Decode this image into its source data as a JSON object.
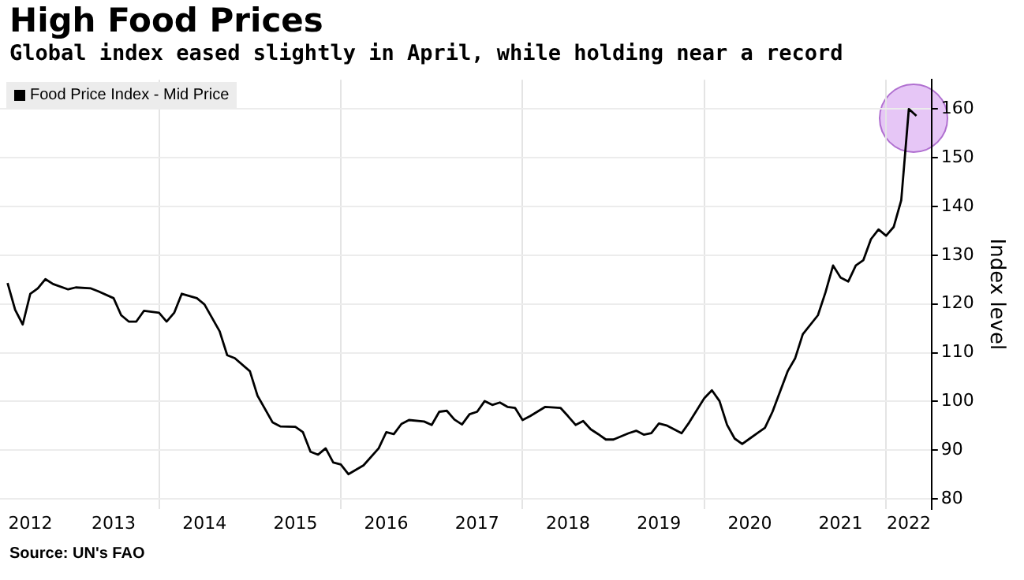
{
  "chart_data": {
    "type": "line",
    "title": "High Food Prices",
    "subtitle": "Global index eased slightly in April, while holding near a record",
    "ylabel": "Index level",
    "annotations": [
      "Source: UN's FAO"
    ],
    "legend": "top left",
    "grid": true,
    "marker": "none",
    "line_style": "solid",
    "xlim": [
      "2012-04",
      "2022-07"
    ],
    "xticks": [
      {
        "value": "2012-08",
        "label": "2012"
      },
      {
        "value": "2013-07",
        "label": "2013"
      },
      {
        "value": "2014-01",
        "label": null
      },
      {
        "value": "2014-07",
        "label": "2014"
      },
      {
        "value": "2015-07",
        "label": "2015"
      },
      {
        "value": "2016-01",
        "label": null
      },
      {
        "value": "2016-07",
        "label": "2016"
      },
      {
        "value": "2017-07",
        "label": "2017"
      },
      {
        "value": "2018-01",
        "label": null
      },
      {
        "value": "2018-07",
        "label": "2018"
      },
      {
        "value": "2019-07",
        "label": "2019"
      },
      {
        "value": "2020-01",
        "label": null
      },
      {
        "value": "2020-07",
        "label": "2020"
      },
      {
        "value": "2021-07",
        "label": "2021"
      },
      {
        "value": "2022-01",
        "label": null
      },
      {
        "value": "2022-04",
        "label": "2022"
      }
    ],
    "ylim": [
      78,
      166
    ],
    "yticks": [
      80,
      90,
      100,
      110,
      120,
      130,
      140,
      150,
      160
    ],
    "series": [
      {
        "name": "Food Price Index - Mid Price",
        "color": "#000000",
        "x": [
          "2012-05",
          "2012-06",
          "2012-07",
          "2012-08",
          "2012-09",
          "2012-10",
          "2012-11",
          "2013-01",
          "2013-02",
          "2013-04",
          "2013-05",
          "2013-07",
          "2013-08",
          "2013-09",
          "2013-10",
          "2013-11",
          "2014-01",
          "2014-02",
          "2014-03",
          "2014-04",
          "2014-06",
          "2014-07",
          "2014-09",
          "2014-10",
          "2014-11",
          "2015-01",
          "2015-02",
          "2015-04",
          "2015-05",
          "2015-07",
          "2015-08",
          "2015-09",
          "2015-10",
          "2015-11",
          "2015-12",
          "2016-01",
          "2016-02",
          "2016-04",
          "2016-06",
          "2016-07",
          "2016-08",
          "2016-09",
          "2016-10",
          "2016-12",
          "2017-01",
          "2017-02",
          "2017-03",
          "2017-04",
          "2017-05",
          "2017-06",
          "2017-07",
          "2017-08",
          "2017-09",
          "2017-10",
          "2017-11",
          "2017-12",
          "2018-01",
          "2018-02",
          "2018-04",
          "2018-06",
          "2018-07",
          "2018-08",
          "2018-09",
          "2018-10",
          "2018-11",
          "2018-12",
          "2019-01",
          "2019-03",
          "2019-04",
          "2019-05",
          "2019-06",
          "2019-07",
          "2019-08",
          "2019-10",
          "2019-11",
          "2020-01",
          "2020-02",
          "2020-03",
          "2020-04",
          "2020-05",
          "2020-06",
          "2020-07",
          "2020-08",
          "2020-09",
          "2020-10",
          "2020-12",
          "2021-01",
          "2021-02",
          "2021-04",
          "2021-05",
          "2021-06",
          "2021-07",
          "2021-08",
          "2021-09",
          "2021-10",
          "2021-11",
          "2021-12",
          "2022-01",
          "2022-02",
          "2022-03",
          "2022-04",
          "2022-05"
        ],
        "values": [
          124.3,
          118.8,
          115.8,
          122.1,
          123.2,
          125.1,
          124.1,
          123.0,
          123.4,
          123.2,
          122.6,
          121.2,
          117.7,
          116.4,
          116.4,
          118.6,
          118.2,
          116.4,
          118.2,
          122.1,
          121.2,
          119.9,
          114.4,
          109.5,
          108.9,
          106.2,
          101.2,
          95.7,
          94.9,
          94.8,
          93.7,
          89.7,
          89.1,
          90.4,
          87.5,
          87.1,
          85.1,
          86.9,
          90.4,
          93.7,
          93.3,
          95.4,
          96.2,
          95.9,
          95.2,
          97.9,
          98.1,
          96.3,
          95.3,
          97.4,
          97.9,
          100.1,
          99.3,
          99.8,
          98.9,
          98.7,
          96.2,
          97.0,
          98.9,
          98.7,
          97.0,
          95.2,
          96.0,
          94.3,
          93.3,
          92.2,
          92.2,
          93.5,
          94.0,
          93.2,
          93.5,
          95.5,
          95.1,
          93.5,
          95.7,
          100.7,
          102.3,
          100.1,
          95.2,
          92.4,
          91.3,
          92.4,
          93.5,
          94.6,
          97.9,
          106.2,
          108.9,
          113.8,
          117.7,
          122.4,
          127.9,
          125.4,
          124.6,
          127.9,
          129.0,
          133.3,
          135.3,
          134.0,
          135.8,
          141.3,
          160.0,
          158.6
        ]
      }
    ]
  }
}
